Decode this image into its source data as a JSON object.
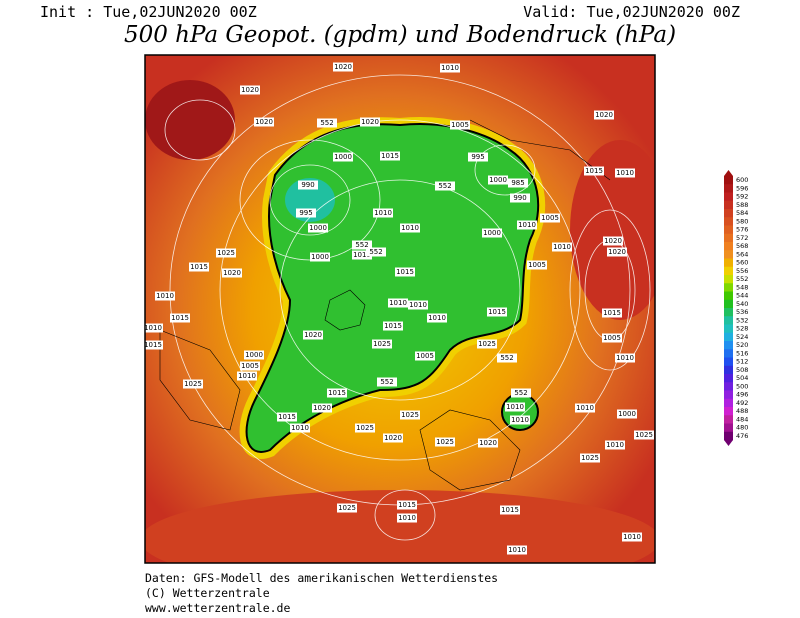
{
  "header": {
    "init": "Init : Tue,02JUN2020 00Z",
    "valid": "Valid: Tue,02JUN2020 00Z",
    "title": "500 hPa Geopot. (gpdm) und Bodendruck (hPa)"
  },
  "colorbar": {
    "labels": [
      "600",
      "596",
      "592",
      "588",
      "584",
      "580",
      "576",
      "572",
      "568",
      "564",
      "560",
      "556",
      "552",
      "548",
      "544",
      "540",
      "536",
      "532",
      "528",
      "524",
      "520",
      "516",
      "512",
      "508",
      "504",
      "500",
      "496",
      "492",
      "488",
      "484",
      "480",
      "476"
    ],
    "colors": [
      "#a01010",
      "#b01818",
      "#c02020",
      "#c83020",
      "#d04020",
      "#d85020",
      "#e06020",
      "#e87020",
      "#f08020",
      "#f09020",
      "#f0b000",
      "#f0d000",
      "#c8e000",
      "#80d800",
      "#40c800",
      "#20c020",
      "#20c060",
      "#20c0a0",
      "#20c0c0",
      "#20b0e0",
      "#2090f0",
      "#2070f0",
      "#2050f0",
      "#3030e0",
      "#5020e0",
      "#7020e0",
      "#9020e0",
      "#b020e0",
      "#d020d0",
      "#c020a0",
      "#a01090",
      "#700070"
    ]
  },
  "map": {
    "labels": [
      "1020",
      "1010",
      "1020",
      "1020",
      "1020",
      "1005",
      "1020",
      "1000",
      "1015",
      "995",
      "1000",
      "985",
      "990",
      "1015",
      "1010",
      "990",
      "995",
      "1000",
      "1010",
      "1010",
      "1000",
      "1005",
      "1010",
      "1015",
      "1015",
      "1010",
      "1020",
      "1020",
      "1000",
      "1025",
      "1015",
      "1020",
      "1005",
      "1010",
      "1015",
      "1010",
      "1010",
      "1010",
      "1015",
      "1015",
      "1020",
      "1025",
      "1005",
      "1025",
      "1015",
      "1005",
      "1010",
      "1015",
      "1000",
      "1005",
      "1010",
      "1010",
      "1025",
      "1015",
      "1010",
      "1020",
      "1015",
      "1025",
      "1010",
      "1000",
      "1010",
      "1010",
      "1025",
      "1020",
      "1025",
      "1020",
      "1010",
      "1025",
      "1025",
      "1025",
      "1015",
      "1010",
      "1015",
      "1010",
      "1010",
      "552",
      "552",
      "552",
      "552",
      "552",
      "552",
      "552"
    ]
  },
  "footer": {
    "lines": [
      "Daten: GFS-Modell des amerikanischen Wetterdienstes",
      "(C) Wetterzentrale",
      "www.wetterzentrale.de"
    ]
  }
}
